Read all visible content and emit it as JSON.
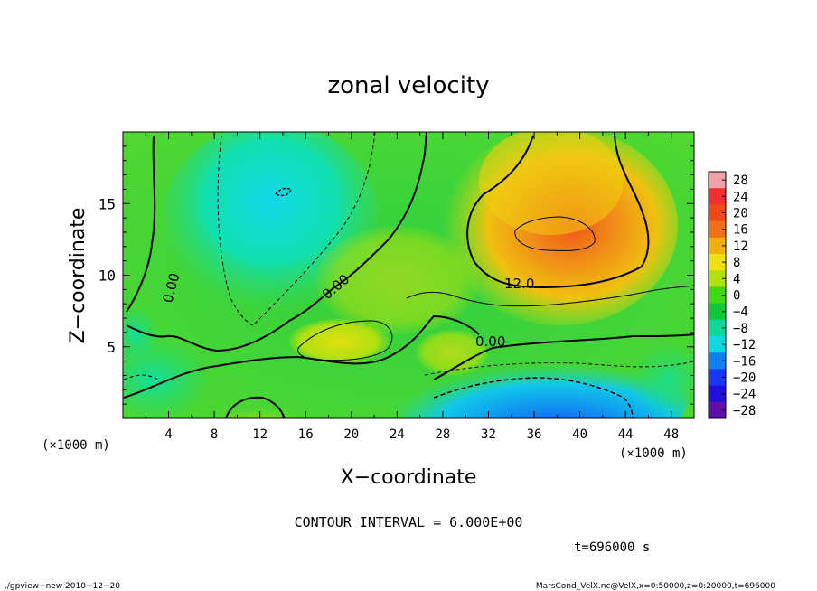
{
  "chart_data": {
    "type": "heatmap",
    "title": "zonal velocity",
    "xlabel": "X−coordinate",
    "ylabel": "Z−coordinate",
    "x_unit_label": "(×1000 m)",
    "y_unit_label": "(×1000 m)",
    "xlim": [
      0,
      50
    ],
    "ylim": [
      0,
      20
    ],
    "x_ticks": [
      "4",
      "8",
      "12",
      "16",
      "20",
      "24",
      "28",
      "32",
      "36",
      "40",
      "44",
      "48"
    ],
    "y_ticks": [
      "5",
      "10",
      "15"
    ],
    "colorbar_levels": [
      "28",
      "24",
      "20",
      "16",
      "12",
      "8",
      "4",
      "0",
      "−4",
      "−8",
      "−12",
      "−16",
      "−20",
      "−24",
      "−28"
    ],
    "colorbar_colors": [
      "#f0a0a8",
      "#f03030",
      "#f04818",
      "#f07018",
      "#f0b010",
      "#f0e010",
      "#b0e010",
      "#40d810",
      "#10c838",
      "#10d898",
      "#10d8e0",
      "#1080f0",
      "#1838f0",
      "#2010d8",
      "#6010a8"
    ],
    "contour_labels": [
      "0.00",
      "0.00",
      "0.00",
      "12.0"
    ],
    "contour_interval": "CONTOUR INTERVAL = 6.000E+00",
    "time_label": "t=696000 s",
    "footer_left": "./gpview−new  2010−12−20",
    "footer_right": "MarsCond_VelX.nc@VelX,x=0:50000,z=0:20000,t=696000"
  }
}
